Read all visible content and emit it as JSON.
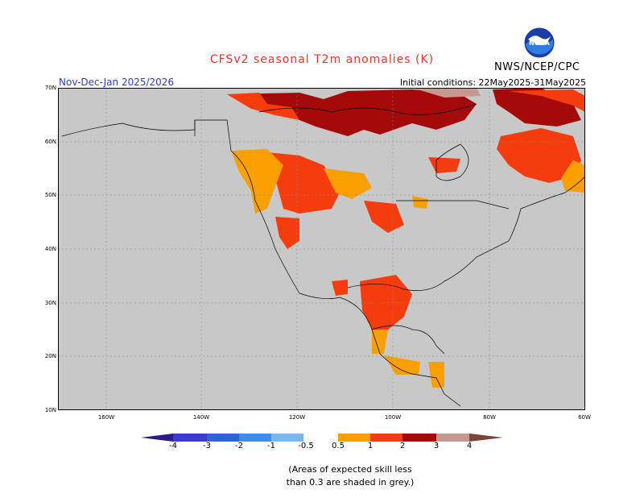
{
  "header": {
    "title": "CFSv2 seasonal T2m anomalies (K)",
    "org": "NWS/NCEP/CPC",
    "season": "Nov-Dec-Jan 2025/2026",
    "initial_conditions": "Initial conditions: 22May2025-31May2025",
    "logo_text": "NOAA"
  },
  "map": {
    "lat_labels": [
      "70N",
      "60N",
      "50N",
      "40N",
      "30N",
      "20N",
      "10N"
    ],
    "lon_labels": [
      "160W",
      "140W",
      "120W",
      "100W",
      "80W",
      "60W"
    ],
    "skill_mask_color": "#c8c8c8",
    "ocean_color": "#c8c8c8"
  },
  "legend": {
    "labels": [
      "-4",
      "-3",
      "-2",
      "-1",
      "-0.5",
      "0.5",
      "1",
      "2",
      "3",
      "4"
    ],
    "colors": {
      "lt_m4": "#2a1a8c",
      "m4_m3": "#3a3acc",
      "m3_m2": "#2e64d6",
      "m2_m1": "#3b8fe8",
      "m1_m05": "#7ab6f0",
      "m05_05": "#ffffff",
      "p05_1": "#f8a000",
      "p1_2": "#f53c0e",
      "p2_3": "#a50a0a",
      "p3_4": "#c89890",
      "gt_4": "#7a4636"
    }
  },
  "note": {
    "line1": "(Areas of expected skill less",
    "line2": "than 0.3 are shaded in grey.)"
  }
}
